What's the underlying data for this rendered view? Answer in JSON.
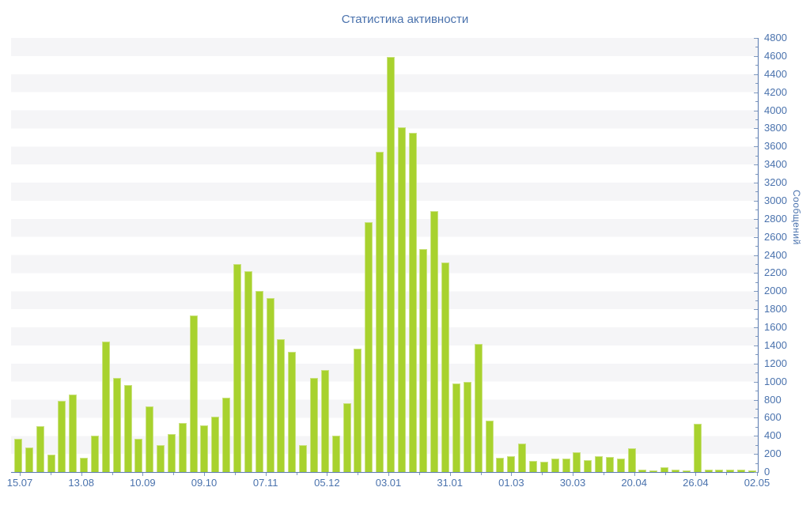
{
  "title": "Статистика активности",
  "colors": {
    "bar_fill": "#a8d22e",
    "bar_border": "#cbe282",
    "text": "#4a72ad",
    "axis_line": "#5a7ab0",
    "tick": "#7f99c0",
    "stripe": "#f5f5f7",
    "background": "#ffffff"
  },
  "chart_data": {
    "type": "bar",
    "title": "Статистика активности",
    "xlabel": "",
    "ylabel": "Сообщений",
    "legend_position": "none",
    "grid": "horizontal alternating 200-unit stripe bands, y axis on right side",
    "ylim": [
      0,
      4800
    ],
    "y_tick_step": 200,
    "y_minor_tick_step": 100,
    "x_tick_labels": [
      "15.07",
      "13.08",
      "10.09",
      "09.10",
      "07.11",
      "05.12",
      "03.01",
      "31.01",
      "01.03",
      "30.03",
      "20.04",
      "26.04",
      "02.05"
    ],
    "series_name": "Сообщений",
    "values": [
      370,
      270,
      510,
      190,
      790,
      860,
      160,
      400,
      1440,
      1040,
      965,
      370,
      730,
      300,
      420,
      540,
      1730,
      520,
      610,
      820,
      2300,
      2225,
      2005,
      1920,
      1465,
      1330,
      300,
      1045,
      1125,
      400,
      765,
      1360,
      2765,
      3545,
      4590,
      3810,
      3755,
      2465,
      2885,
      2320,
      980,
      1000,
      1415,
      570,
      160,
      175,
      315,
      120,
      110,
      150,
      145,
      220,
      135,
      175,
      165,
      150,
      260,
      30,
      15,
      50,
      30,
      10,
      530,
      30,
      25,
      25,
      25,
      15
    ]
  }
}
